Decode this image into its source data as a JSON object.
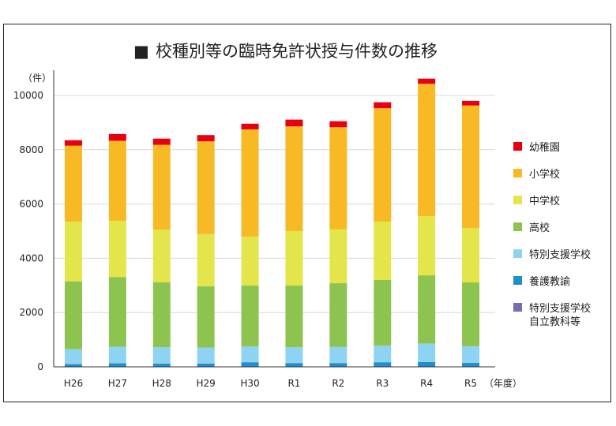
{
  "chart_data": {
    "type": "bar",
    "stacked": true,
    "title_marker": "■",
    "title": "校種別等の臨時免許状授与件数の推移",
    "ylabel": "（件）",
    "xlabel": "（年度）",
    "categories": [
      "H26",
      "H27",
      "H28",
      "H29",
      "H30",
      "R1",
      "R2",
      "R3",
      "R4",
      "R5"
    ],
    "ylim": [
      0,
      10000
    ],
    "yticks": [
      0,
      2000,
      4000,
      6000,
      8000,
      10000
    ],
    "grid": "horizontal",
    "legend_position": "right",
    "series": [
      {
        "name": "特別支援学校自立教科等",
        "name_lines": [
          "特別支援学校",
          "自立教科等"
        ],
        "color": "#7b6bb0",
        "values": [
          10,
          10,
          10,
          10,
          10,
          10,
          10,
          10,
          10,
          10
        ]
      },
      {
        "name": "養護教諭",
        "color": "#1f8fd0",
        "values": [
          90,
          120,
          110,
          110,
          160,
          130,
          130,
          160,
          170,
          140
        ]
      },
      {
        "name": "特別支援学校",
        "color": "#8ed3f2",
        "values": [
          550,
          610,
          600,
          590,
          580,
          580,
          590,
          610,
          680,
          610
        ]
      },
      {
        "name": "高校",
        "color": "#8dc450",
        "values": [
          2500,
          2570,
          2400,
          2260,
          2250,
          2280,
          2350,
          2420,
          2510,
          2350
        ]
      },
      {
        "name": "中学校",
        "color": "#e3e54a",
        "values": [
          2200,
          2070,
          1930,
          1920,
          1800,
          2000,
          1990,
          2150,
          2180,
          2000
        ]
      },
      {
        "name": "小学校",
        "color": "#f7b924",
        "values": [
          2800,
          2950,
          3130,
          3420,
          3950,
          3860,
          3760,
          4180,
          4880,
          4520
        ]
      },
      {
        "name": "幼稚園",
        "color": "#e60012",
        "values": [
          200,
          250,
          230,
          230,
          210,
          250,
          220,
          220,
          190,
          170
        ]
      }
    ],
    "legend_order": [
      "幼稚園",
      "小学校",
      "中学校",
      "高校",
      "特別支援学校",
      "養護教諭",
      "特別支援学校自立教科等"
    ]
  }
}
